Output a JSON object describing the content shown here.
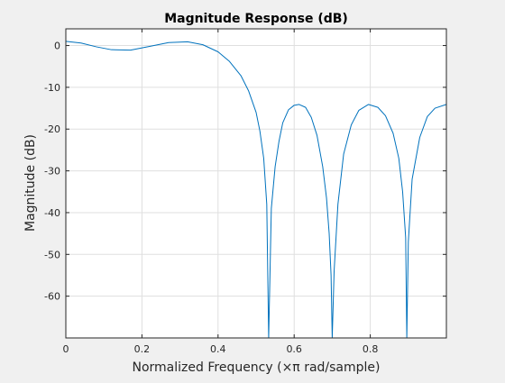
{
  "chart_data": {
    "type": "line",
    "title": "Magnitude Response (dB)",
    "xlabel": "Normalized Frequency (×π rad/sample)",
    "ylabel": "Magnitude (dB)",
    "xlim": [
      0,
      1
    ],
    "ylim": [
      -70,
      4
    ],
    "xticks": [
      0,
      0.2,
      0.4,
      0.6,
      0.8
    ],
    "xtick_labels": [
      "0",
      "0.2",
      "0.4",
      "0.6",
      "0.8"
    ],
    "yticks": [
      0,
      -10,
      -20,
      -30,
      -40,
      -50,
      -60
    ],
    "ytick_labels": [
      "0",
      "-10",
      "-20",
      "-30",
      "-40",
      "-50",
      "-60"
    ],
    "grid": true,
    "line_color": "#0072bd",
    "series": [
      {
        "x": [
          0,
          0.04,
          0.08,
          0.12,
          0.17,
          0.22,
          0.27,
          0.32,
          0.36,
          0.4,
          0.43,
          0.46,
          0.48,
          0.5,
          0.51,
          0.52,
          0.528,
          0.533,
          0.54,
          0.55,
          0.56,
          0.57,
          0.585,
          0.6,
          0.613,
          0.63,
          0.645,
          0.66,
          0.675,
          0.685,
          0.692,
          0.697,
          0.7,
          0.705,
          0.715,
          0.73,
          0.75,
          0.77,
          0.795,
          0.82,
          0.84,
          0.86,
          0.875,
          0.885,
          0.893,
          0.896,
          0.9,
          0.91,
          0.93,
          0.95,
          0.97,
          1.0
        ],
        "y": [
          1,
          0.6,
          -0.3,
          -1,
          -1.1,
          -0.2,
          0.7,
          0.9,
          0.2,
          -1.5,
          -3.8,
          -7.2,
          -10.8,
          -16,
          -20.5,
          -27,
          -38,
          -72,
          -39,
          -29,
          -23,
          -18.5,
          -15.4,
          -14.3,
          -14.1,
          -14.8,
          -17.2,
          -21.5,
          -29,
          -36.5,
          -45,
          -55,
          -72,
          -54,
          -38,
          -26,
          -19,
          -15.5,
          -14.1,
          -14.8,
          -16.8,
          -21,
          -27,
          -35,
          -46,
          -72,
          -47,
          -32,
          -22,
          -17,
          -15,
          -14.1
        ]
      }
    ]
  }
}
